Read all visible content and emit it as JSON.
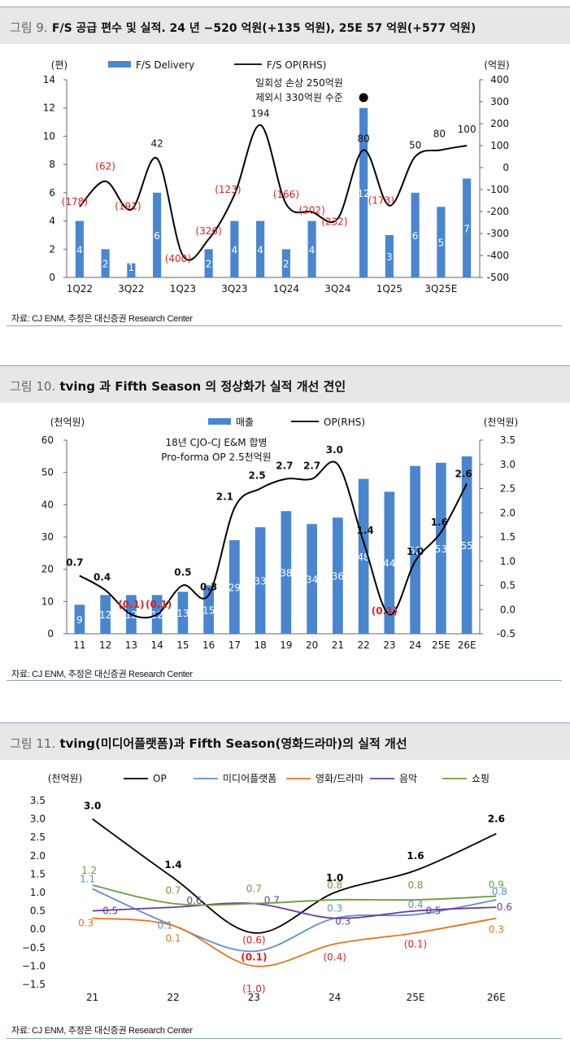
{
  "fig9": {
    "title_num": "그림 9.",
    "title_text": "F/S 공급 편수 및 실적. 24 년 −520 억원(+135 억원), 25E 57 억원(+577 억원)",
    "left_unit": "(편)",
    "right_unit": "(억원)",
    "legend_bar": "F/S Delivery",
    "legend_line": "F/S OP(RHS)",
    "annotation": [
      "일회성 손상 250억원",
      "제외시 330억원 수준"
    ],
    "source": "자료: CJ ENM, 추정은 대신증권 Research Center"
  },
  "fig10": {
    "title_num": "그림 10.",
    "title_text": "tving 과 Fifth Season 의 정상화가 실적 개선 견인",
    "left_unit": "(천억원)",
    "right_unit": "(천억원)",
    "legend_bar": "매출",
    "legend_line": "OP(RHS)",
    "annotation": [
      "18년 CJO-CJ E&M 합병",
      "Pro-forma OP 2.5천억원"
    ],
    "source": "자료: CJ ENM, 추정은 대신증권 Research Center"
  },
  "fig11": {
    "title_num": "그림 11.",
    "title_text": "tving(미디어플랫폼)과 Fifth Season(영화드라마)의 실적 개선",
    "left_unit": "(천억원)",
    "source": "자료: CJ ENM, 추정은 대신증권 Research Center"
  },
  "chart_data": [
    {
      "type": "bar",
      "categories": [
        "1Q22",
        "2Q22",
        "3Q22",
        "4Q22",
        "1Q23",
        "2Q23",
        "3Q23",
        "4Q23",
        "1Q24",
        "2Q24",
        "3Q24",
        "4Q24",
        "1Q25",
        "2Q25",
        "3Q25E",
        "4Q25E"
      ],
      "tick_labels": [
        "1Q22",
        "3Q22",
        "1Q23",
        "3Q23",
        "1Q24",
        "3Q24",
        "1Q25",
        "3Q25E"
      ],
      "series": [
        {
          "name": "F/S Delivery",
          "type": "bar",
          "axis": "left",
          "values": [
            4,
            2,
            1,
            6,
            0,
            2,
            4,
            4,
            2,
            4,
            0,
            12,
            3,
            6,
            5,
            7
          ],
          "labels": [
            "4",
            "2",
            "1",
            "6",
            "",
            "2",
            "4",
            "4",
            "2",
            "4",
            "",
            "12",
            "3",
            "6",
            "5",
            "7"
          ]
        },
        {
          "name": "F/S OP(RHS)",
          "type": "line",
          "axis": "right",
          "values": [
            -178,
            -62,
            -191,
            42,
            -400,
            -326,
            -123,
            194,
            -166,
            -202,
            -232,
            80,
            -173,
            50,
            80,
            100
          ],
          "labels": [
            "(178)",
            "(62)",
            "(191)",
            "42",
            "(400)",
            "(326)",
            "(123)",
            "194",
            "(166)",
            "(202)",
            "(232)",
            "80",
            "(173)",
            "50",
            "80",
            "100"
          ]
        }
      ],
      "ylim": [
        0,
        14
      ],
      "yticks": [
        0,
        2,
        4,
        6,
        8,
        10,
        12,
        14
      ],
      "y2lim": [
        -500,
        400
      ],
      "y2ticks": [
        -500,
        -400,
        -300,
        -200,
        -100,
        0,
        100,
        200,
        300,
        400
      ],
      "y2ticklabels": [
        "-500",
        "-400",
        "-300",
        "-200",
        "-100",
        "0",
        "100",
        "200",
        "300",
        "400"
      ],
      "colors": {
        "bar": "#4a86d0",
        "line": "#000000",
        "negative_label": "#e0201b"
      }
    },
    {
      "type": "bar",
      "categories": [
        "11",
        "12",
        "13",
        "14",
        "15",
        "16",
        "17",
        "18",
        "19",
        "20",
        "21",
        "22",
        "23",
        "24",
        "25E",
        "26E"
      ],
      "series": [
        {
          "name": "매출",
          "type": "bar",
          "axis": "left",
          "values": [
            9,
            12,
            12,
            12,
            13,
            15,
            29,
            33,
            38,
            34,
            36,
            48,
            44,
            52,
            53,
            55
          ],
          "labels": [
            "9",
            "12",
            "12",
            "12",
            "13",
            "15",
            "29",
            "33",
            "38",
            "34",
            "36",
            "48",
            "44",
            "52",
            "53",
            "55"
          ]
        },
        {
          "name": "OP(RHS)",
          "type": "line",
          "axis": "right",
          "values": [
            0.7,
            0.4,
            -0.1,
            -0.1,
            0.5,
            0.3,
            2.1,
            2.5,
            2.7,
            2.7,
            3.0,
            1.4,
            -0.1,
            1.0,
            1.6,
            2.6
          ],
          "labels": [
            "0.7",
            "0.4",
            "(0.1)",
            "(0.1)",
            "0.5",
            "0.3",
            "2.1",
            "2.5",
            "2.7",
            "2.7",
            "3.0",
            "1.4",
            "(0.1)",
            "1.0",
            "1.6",
            "2.6"
          ]
        }
      ],
      "ylim": [
        0,
        60
      ],
      "yticks": [
        0,
        10,
        20,
        30,
        40,
        50,
        60
      ],
      "y2lim": [
        -0.5,
        3.5
      ],
      "y2ticks": [
        -0.5,
        0,
        0.5,
        1,
        1.5,
        2,
        2.5,
        3,
        3.5
      ],
      "y2ticklabels": [
        "-0.5",
        "0.0",
        "0.5",
        "1.0",
        "1.5",
        "2.0",
        "2.5",
        "3.0",
        "3.5"
      ],
      "colors": {
        "bar": "#4a86d0",
        "line": "#000000",
        "negative_label": "#e0201b"
      }
    },
    {
      "type": "line",
      "categories": [
        "21",
        "22",
        "23",
        "24",
        "25E",
        "26E"
      ],
      "series": [
        {
          "name": "OP",
          "color": "#000000",
          "values": [
            3.0,
            1.4,
            -0.1,
            1.0,
            1.6,
            2.6
          ],
          "labels": [
            "3.0",
            "1.4",
            "(0.1)",
            "1.0",
            "1.6",
            "2.6"
          ]
        },
        {
          "name": "미디어플랫폼",
          "color": "#5b8fd6",
          "values": [
            1.1,
            0.1,
            -0.6,
            0.3,
            0.4,
            0.8
          ],
          "labels": [
            "1.1",
            "0.1",
            "(0.6)",
            "0.3",
            "0.4",
            "0.8"
          ]
        },
        {
          "name": "영화/드라마",
          "color": "#e8731c",
          "values": [
            0.3,
            0.1,
            -1.0,
            -0.4,
            -0.1,
            0.3
          ],
          "labels": [
            "0.3",
            "0.1",
            "(1.0)",
            "(0.4)",
            "(0.1)",
            "0.3"
          ]
        },
        {
          "name": "음악",
          "color": "#6b3a98",
          "values": [
            0.5,
            0.6,
            0.7,
            0.3,
            0.5,
            0.6
          ],
          "labels": [
            "0.5",
            "0.6",
            "0.7",
            "0.3",
            "0.5",
            "0.6"
          ]
        },
        {
          "name": "쇼핑",
          "color": "#6e9a3a",
          "values": [
            1.2,
            0.7,
            0.7,
            0.8,
            0.8,
            0.9
          ],
          "labels": [
            "1.2",
            "0.7",
            "0.7",
            "0.8",
            "0.8",
            "0.9"
          ]
        }
      ],
      "ylim": [
        -1.5,
        3.5
      ],
      "yticks": [
        -1.5,
        -1,
        -0.5,
        0,
        0.5,
        1,
        1.5,
        2,
        2.5,
        3,
        3.5
      ],
      "yticklabels": [
        "−1.5",
        "−1.0",
        "−0.5",
        "0.0",
        "0.5",
        "1.0",
        "1.5",
        "2.0",
        "2.5",
        "3.0",
        "3.5"
      ],
      "negative_label_color": "#e0201b"
    }
  ]
}
